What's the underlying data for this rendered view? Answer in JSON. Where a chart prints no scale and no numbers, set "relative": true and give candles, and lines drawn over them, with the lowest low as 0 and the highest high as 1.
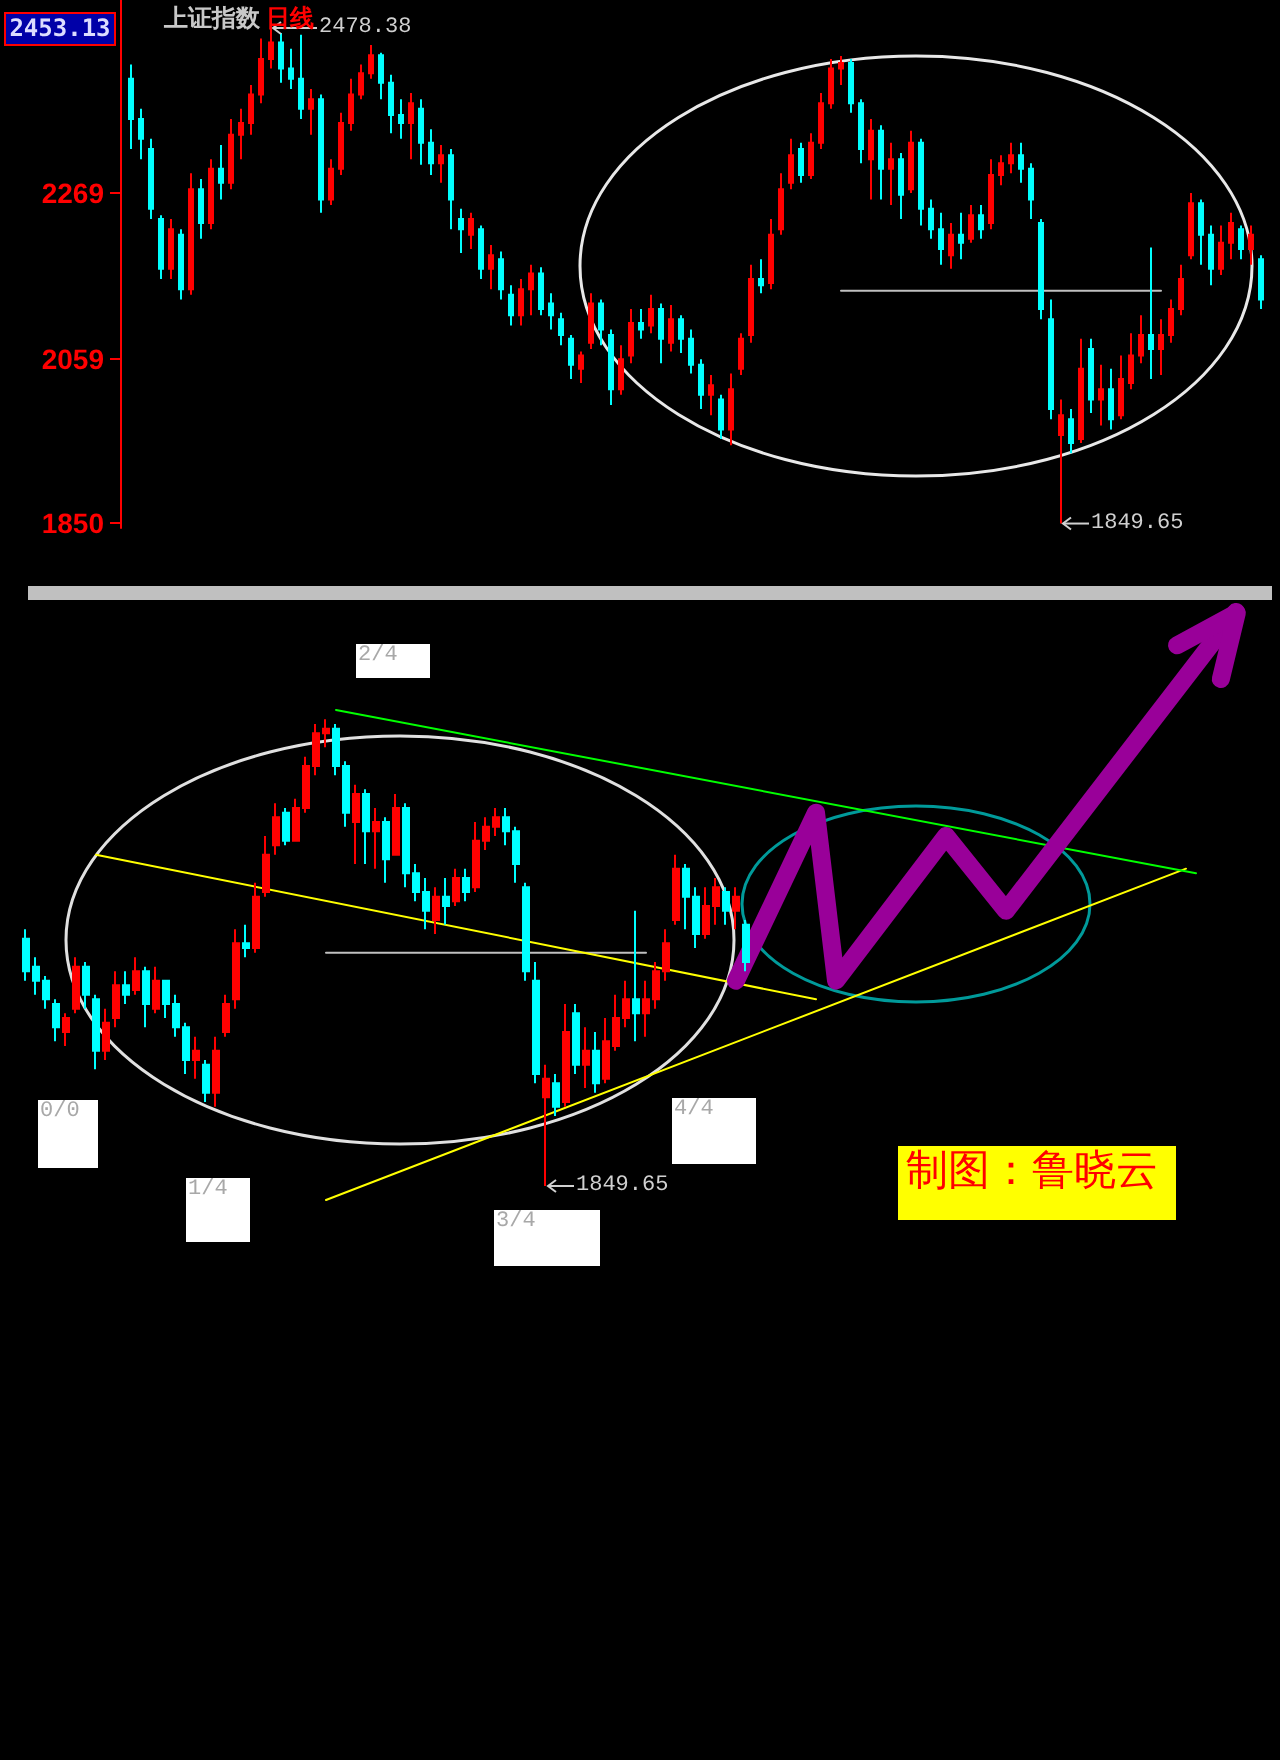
{
  "chart_data": [
    {
      "type": "candlestick",
      "title": "上证指数",
      "subtitle": "日线",
      "categories": [
        null,
        null,
        null,
        null,
        null,
        null,
        null,
        null,
        null,
        null,
        null,
        null,
        null,
        null,
        null,
        null,
        null,
        null,
        null,
        null,
        null,
        null,
        null,
        null,
        null,
        null,
        null,
        null,
        null,
        null,
        null,
        null,
        null,
        null,
        null,
        null,
        null,
        null,
        null,
        null,
        null,
        null,
        null,
        null,
        null,
        null,
        null,
        null,
        null,
        null,
        null,
        null,
        null,
        null,
        null,
        null,
        null,
        null,
        null,
        null,
        null,
        null,
        null,
        null,
        null,
        null,
        null,
        null,
        null,
        null,
        null,
        null,
        null,
        null,
        null,
        null,
        null,
        null,
        null,
        null,
        null,
        null,
        null,
        null,
        null,
        null,
        null,
        null,
        null,
        null,
        null,
        null,
        null,
        null,
        null,
        null,
        null,
        null,
        null,
        null,
        null,
        null,
        null,
        null,
        null,
        null,
        null,
        null,
        null,
        null,
        null,
        null,
        null,
        null
      ],
      "ohlc": [
        [
          2414,
          2432,
          2325,
          2363
        ],
        [
          2363,
          2376,
          2312,
          2338
        ],
        [
          2325,
          2338,
          2236,
          2249
        ],
        [
          2236,
          2241,
          2160,
          2173
        ],
        [
          2173,
          2236,
          2160,
          2223
        ],
        [
          2216,
          2223,
          2134,
          2147
        ],
        [
          2147,
          2294,
          2140,
          2274
        ],
        [
          2274,
          2287,
          2211,
          2231
        ],
        [
          2231,
          2312,
          2223,
          2300
        ],
        [
          2300,
          2330,
          2261,
          2282
        ],
        [
          2282,
          2363,
          2274,
          2343
        ],
        [
          2343,
          2376,
          2312,
          2358
        ],
        [
          2358,
          2406,
          2343,
          2394
        ],
        [
          2394,
          2465,
          2383,
          2439
        ],
        [
          2439,
          2478.38,
          2427,
          2460
        ],
        [
          2460,
          2472,
          2409,
          2427
        ],
        [
          2427,
          2452,
          2401,
          2414
        ],
        [
          2414,
          2470,
          2363,
          2376
        ],
        [
          2376,
          2401,
          2343,
          2388
        ],
        [
          2388,
          2394,
          2244,
          2261
        ],
        [
          2261,
          2312,
          2254,
          2300
        ],
        [
          2300,
          2371,
          2292,
          2358
        ],
        [
          2358,
          2414,
          2348,
          2394
        ],
        [
          2394,
          2432,
          2388,
          2421
        ],
        [
          2421,
          2457,
          2414,
          2444
        ],
        [
          2444,
          2447,
          2388,
          2409
        ],
        [
          2409,
          2419,
          2345,
          2368
        ],
        [
          2368,
          2388,
          2338,
          2358
        ],
        [
          2358,
          2396,
          2312,
          2383
        ],
        [
          2376,
          2388,
          2305,
          2333
        ],
        [
          2333,
          2350,
          2292,
          2307
        ],
        [
          2307,
          2330,
          2282,
          2317
        ],
        [
          2317,
          2325,
          2223,
          2261
        ],
        [
          2236,
          2249,
          2193,
          2223
        ],
        [
          2216,
          2244,
          2198,
          2236
        ],
        [
          2223,
          2228,
          2160,
          2173
        ],
        [
          2173,
          2203,
          2147,
          2190
        ],
        [
          2185,
          2195,
          2134,
          2147
        ],
        [
          2140,
          2152,
          2101,
          2114
        ],
        [
          2114,
          2160,
          2101,
          2147
        ],
        [
          2147,
          2178,
          2114,
          2167
        ],
        [
          2167,
          2175,
          2114,
          2122
        ],
        [
          2129,
          2142,
          2096,
          2114
        ],
        [
          2109,
          2117,
          2076,
          2089
        ],
        [
          2084,
          2089,
          2033,
          2051
        ],
        [
          2046,
          2068,
          2028,
          2063
        ],
        [
          2079,
          2142,
          2071,
          2129
        ],
        [
          2129,
          2134,
          2076,
          2096
        ],
        [
          2089,
          2096,
          2000,
          2020
        ],
        [
          2020,
          2076,
          2013,
          2058
        ],
        [
          2063,
          2122,
          2053,
          2104
        ],
        [
          2104,
          2122,
          2084,
          2096
        ],
        [
          2101,
          2140,
          2091,
          2122
        ],
        [
          2122,
          2129,
          2053,
          2084
        ],
        [
          2079,
          2127,
          2068,
          2109
        ],
        [
          2109,
          2114,
          2066,
          2084
        ],
        [
          2084,
          2096,
          2040,
          2051
        ],
        [
          2051,
          2058,
          1995,
          2013
        ],
        [
          2013,
          2038,
          1987,
          2025
        ],
        [
          2007,
          2013,
          1957,
          1969
        ],
        [
          1969,
          2040,
          1949,
          2020
        ],
        [
          2046,
          2091,
          2038,
          2084
        ],
        [
          2089,
          2178,
          2079,
          2160
        ],
        [
          2160,
          2185,
          2142,
          2152
        ],
        [
          2155,
          2236,
          2147,
          2216
        ],
        [
          2223,
          2294,
          2216,
          2274
        ],
        [
          2282,
          2338,
          2274,
          2317
        ],
        [
          2325,
          2333,
          2282,
          2292
        ],
        [
          2292,
          2345,
          2287,
          2333
        ],
        [
          2333,
          2396,
          2325,
          2383
        ],
        [
          2383,
          2439,
          2376,
          2427
        ],
        [
          2427,
          2443,
          2406,
          2434
        ],
        [
          2434,
          2439,
          2371,
          2383
        ],
        [
          2383,
          2388,
          2307,
          2325
        ],
        [
          2312,
          2363,
          2261,
          2348
        ],
        [
          2348,
          2355,
          2261,
          2300
        ],
        [
          2300,
          2333,
          2254,
          2312
        ],
        [
          2312,
          2320,
          2236,
          2267
        ],
        [
          2274,
          2348,
          2269,
          2333
        ],
        [
          2333,
          2338,
          2228,
          2249
        ],
        [
          2249,
          2261,
          2211,
          2223
        ],
        [
          2223,
          2244,
          2178,
          2198
        ],
        [
          2190,
          2231,
          2173,
          2216
        ],
        [
          2216,
          2244,
          2185,
          2206
        ],
        [
          2211,
          2254,
          2206,
          2241
        ],
        [
          2241,
          2254,
          2211,
          2223
        ],
        [
          2231,
          2312,
          2223,
          2292
        ],
        [
          2292,
          2317,
          2279,
          2307
        ],
        [
          2307,
          2333,
          2294,
          2317
        ],
        [
          2317,
          2333,
          2282,
          2300
        ],
        [
          2300,
          2307,
          2236,
          2261
        ],
        [
          2231,
          2236,
          2109,
          2122
        ],
        [
          2109,
          2134,
          1982,
          1995
        ],
        [
          1962,
          2007,
          1849.65,
          1987
        ],
        [
          1982,
          1995,
          1939,
          1952
        ],
        [
          1957,
          2084,
          1952,
          2046
        ],
        [
          2071,
          2084,
          1990,
          2007
        ],
        [
          2007,
          2051,
          1974,
          2020
        ],
        [
          2020,
          2046,
          1969,
          1982
        ],
        [
          1987,
          2063,
          1982,
          2033
        ],
        [
          2028,
          2091,
          2020,
          2063
        ],
        [
          2063,
          2114,
          2053,
          2089
        ],
        [
          2089,
          2200,
          2033,
          2071
        ],
        [
          2071,
          2109,
          2038,
          2089
        ],
        [
          2089,
          2134,
          2079,
          2122
        ],
        [
          2122,
          2178,
          2114,
          2160
        ],
        [
          2190,
          2269,
          2185,
          2256
        ],
        [
          2256,
          2261,
          2178,
          2216
        ],
        [
          2216,
          2228,
          2152,
          2173
        ],
        [
          2173,
          2228,
          2165,
          2206
        ],
        [
          2206,
          2244,
          2185,
          2231
        ],
        [
          2223,
          2228,
          2185,
          2198
        ],
        [
          2198,
          2228,
          2178,
          2216
        ],
        [
          2185,
          2190,
          2122,
          2134
        ]
      ],
      "series": [
        {
          "type": "line",
          "color": "#c0c0c0",
          "values": [
            null,
            null,
            null,
            null,
            null,
            null,
            null,
            null,
            null,
            null,
            null,
            null,
            null,
            null,
            null,
            null,
            null,
            null,
            null,
            null,
            null,
            null,
            null,
            null,
            null,
            null,
            null,
            null,
            null,
            null,
            null,
            null,
            null,
            null,
            null,
            null,
            null,
            null,
            null,
            null,
            null,
            null,
            null,
            null,
            null,
            null,
            null,
            null,
            null,
            null,
            null,
            null,
            null,
            null,
            null,
            null,
            null,
            null,
            null,
            null,
            null,
            null,
            null,
            null,
            null,
            null,
            null,
            null,
            null,
            null,
            null,
            2145,
            null,
            null,
            null,
            null,
            null,
            null,
            null,
            null,
            null,
            null,
            null,
            null,
            null,
            null,
            null,
            null,
            null,
            null,
            null,
            null,
            null,
            null,
            null,
            null,
            null,
            null,
            null,
            null,
            null,
            null,
            null,
            2145,
            null,
            null,
            null,
            null,
            null,
            null,
            null,
            null,
            null,
            null
          ]
        }
      ],
      "ylim": [
        1844,
        2514
      ],
      "yticks": [
        1850,
        2059,
        2269
      ],
      "tick_labels": "y",
      "annotations": [
        "2453.13",
        "2478.38",
        "1849.65"
      ]
    },
    {
      "type": "candlestick",
      "relative": true,
      "tick_labels": false,
      "categories": [
        null,
        null,
        null,
        null,
        null,
        null,
        null,
        null,
        null,
        null,
        null,
        null,
        null,
        null,
        null,
        null,
        null,
        null,
        null,
        null,
        null,
        null,
        null,
        null,
        null,
        null,
        null,
        null,
        null,
        null,
        null,
        null,
        null,
        null,
        null,
        null,
        null,
        null,
        null,
        null,
        null,
        null,
        null,
        null,
        null,
        null,
        null,
        null,
        null,
        null,
        null,
        null,
        null,
        null,
        null,
        null,
        null,
        null,
        null,
        null,
        null,
        null,
        null,
        null,
        null,
        null,
        null,
        null,
        null,
        null,
        null,
        null,
        null,
        null,
        null,
        null,
        null,
        null,
        null,
        null,
        null,
        null,
        null,
        null,
        null,
        null,
        null,
        null,
        null,
        null,
        null,
        null,
        null,
        null,
        null,
        null,
        null,
        null,
        null,
        null,
        null,
        null,
        null,
        null,
        null,
        null,
        null,
        null,
        null,
        null,
        null,
        null,
        null,
        null,
        null,
        null,
        null,
        null,
        null,
        null,
        null,
        null,
        null,
        null
      ],
      "ohlc": [
        [
          0.53,
          0.55,
          0.44,
          0.46
        ],
        [
          0.47,
          0.49,
          0.41,
          0.44
        ],
        [
          0.44,
          0.45,
          0.38,
          0.4
        ],
        [
          0.39,
          0.4,
          0.31,
          0.34
        ],
        [
          0.33,
          0.37,
          0.3,
          0.36
        ],
        [
          0.38,
          0.49,
          0.37,
          0.47
        ],
        [
          0.47,
          0.48,
          0.38,
          0.41
        ],
        [
          0.4,
          0.41,
          0.25,
          0.29
        ],
        [
          0.29,
          0.38,
          0.27,
          0.35
        ],
        [
          0.36,
          0.46,
          0.34,
          0.43
        ],
        [
          0.43,
          0.46,
          0.39,
          0.41
        ],
        [
          0.42,
          0.49,
          0.41,
          0.46
        ],
        [
          0.46,
          0.47,
          0.34,
          0.39
        ],
        [
          0.38,
          0.47,
          0.37,
          0.44
        ],
        [
          0.44,
          0.44,
          0.36,
          0.39
        ],
        [
          0.39,
          0.41,
          0.32,
          0.34
        ],
        [
          0.34,
          0.35,
          0.24,
          0.27
        ],
        [
          0.27,
          0.32,
          0.23,
          0.29
        ],
        [
          0.26,
          0.27,
          0.18,
          0.2
        ],
        [
          0.2,
          0.32,
          0.17,
          0.29
        ],
        [
          0.33,
          0.41,
          0.32,
          0.39
        ],
        [
          0.4,
          0.55,
          0.38,
          0.52
        ],
        [
          0.52,
          0.56,
          0.49,
          0.51
        ],
        [
          0.51,
          0.65,
          0.5,
          0.62
        ],
        [
          0.63,
          0.75,
          0.62,
          0.71
        ],
        [
          0.73,
          0.82,
          0.71,
          0.79
        ],
        [
          0.8,
          0.81,
          0.73,
          0.74
        ],
        [
          0.74,
          0.83,
          0.74,
          0.81
        ],
        [
          0.81,
          0.92,
          0.8,
          0.9
        ],
        [
          0.9,
          0.99,
          0.88,
          0.97
        ],
        [
          0.97,
          1,
          0.94,
          0.98
        ],
        [
          0.98,
          0.99,
          0.88,
          0.9
        ],
        [
          0.9,
          0.91,
          0.77,
          0.8
        ],
        [
          0.78,
          0.86,
          0.69,
          0.84
        ],
        [
          0.84,
          0.85,
          0.69,
          0.76
        ],
        [
          0.76,
          0.81,
          0.68,
          0.78
        ],
        [
          0.78,
          0.79,
          0.65,
          0.7
        ],
        [
          0.71,
          0.84,
          0.71,
          0.81
        ],
        [
          0.81,
          0.82,
          0.64,
          0.67
        ],
        [
          0.67,
          0.69,
          0.61,
          0.63
        ],
        [
          0.63,
          0.66,
          0.55,
          0.59
        ],
        [
          0.57,
          0.64,
          0.54,
          0.62
        ],
        [
          0.62,
          0.66,
          0.56,
          0.6
        ],
        [
          0.61,
          0.68,
          0.6,
          0.66
        ],
        [
          0.66,
          0.68,
          0.61,
          0.63
        ],
        [
          0.64,
          0.78,
          0.63,
          0.74
        ],
        [
          0.74,
          0.79,
          0.72,
          0.77
        ],
        [
          0.77,
          0.81,
          0.75,
          0.79
        ],
        [
          0.79,
          0.81,
          0.73,
          0.76
        ],
        [
          0.76,
          0.77,
          0.65,
          0.69
        ],
        [
          0.64,
          0.65,
          0.44,
          0.46
        ],
        [
          0.44,
          0.48,
          0.22,
          0.24
        ],
        [
          0.19,
          0.26,
          0,
          0.23
        ],
        [
          0.22,
          0.24,
          0.15,
          0.17
        ],
        [
          0.18,
          0.39,
          0.17,
          0.33
        ],
        [
          0.37,
          0.39,
          0.24,
          0.26
        ],
        [
          0.26,
          0.34,
          0.21,
          0.29
        ],
        [
          0.29,
          0.33,
          0.2,
          0.22
        ],
        [
          0.23,
          0.36,
          0.22,
          0.31
        ],
        [
          0.3,
          0.41,
          0.29,
          0.36
        ],
        [
          0.36,
          0.44,
          0.34,
          0.4
        ],
        [
          0.4,
          0.59,
          0.31,
          0.37
        ],
        [
          0.37,
          0.44,
          0.32,
          0.4
        ],
        [
          0.4,
          0.48,
          0.38,
          0.46
        ],
        [
          0.46,
          0.55,
          0.44,
          0.52
        ],
        [
          0.57,
          0.71,
          0.56,
          0.68
        ],
        [
          0.68,
          0.69,
          0.55,
          0.62
        ],
        [
          0.62,
          0.64,
          0.51,
          0.54
        ],
        [
          0.54,
          0.64,
          0.53,
          0.6
        ],
        [
          0.6,
          0.66,
          0.56,
          0.64
        ],
        [
          0.63,
          0.64,
          0.56,
          0.59
        ],
        [
          0.59,
          0.64,
          0.55,
          0.62
        ],
        [
          0.56,
          0.57,
          0.46,
          0.48
        ],
        null,
        null,
        null,
        null,
        null,
        null,
        null,
        null,
        null,
        null,
        null,
        null,
        null,
        null,
        null,
        null,
        null,
        null,
        null,
        null,
        null,
        null,
        null,
        null,
        null,
        null,
        null,
        null,
        null,
        null,
        null,
        null,
        null,
        null,
        null,
        null,
        null,
        null,
        null,
        null,
        null,
        null,
        null,
        null,
        null,
        null,
        null,
        null,
        null,
        null,
        null
      ],
      "series": [
        {
          "type": "line",
          "color": "#c0c0c0",
          "values": [
            null,
            null,
            null,
            null,
            null,
            null,
            null,
            null,
            null,
            null,
            null,
            null,
            null,
            null,
            null,
            null,
            null,
            null,
            null,
            null,
            null,
            null,
            null,
            null,
            null,
            null,
            null,
            null,
            null,
            null,
            0.5,
            null,
            null,
            null,
            null,
            null,
            null,
            null,
            null,
            null,
            null,
            null,
            null,
            null,
            null,
            null,
            null,
            null,
            null,
            null,
            null,
            null,
            null,
            null,
            null,
            null,
            null,
            null,
            null,
            null,
            null,
            null,
            0.5,
            null,
            null,
            null,
            null,
            null,
            null,
            null,
            null,
            null,
            null,
            null,
            null,
            null,
            null,
            null,
            null,
            null,
            null,
            null,
            null,
            null,
            null,
            null,
            null,
            null,
            null,
            null,
            null,
            null,
            null,
            null,
            null,
            null,
            null,
            null,
            null,
            null,
            null,
            null,
            null,
            null,
            null,
            null,
            null,
            null,
            null,
            null,
            null,
            null,
            null,
            null,
            null,
            null,
            null,
            null,
            null,
            null,
            null,
            null,
            null,
            null
          ]
        },
        {
          "type": "line",
          "color": "#ffff00",
          "values": [
            null,
            null,
            null,
            null,
            null,
            null,
            null,
            0.71,
            null,
            null,
            null,
            null,
            null,
            null,
            null,
            null,
            null,
            null,
            null,
            null,
            null,
            null,
            null,
            null,
            null,
            null,
            null,
            null,
            null,
            null,
            null,
            null,
            null,
            null,
            null,
            null,
            null,
            null,
            null,
            null,
            null,
            null,
            null,
            null,
            null,
            null,
            null,
            null,
            null,
            null,
            null,
            null,
            null,
            null,
            null,
            null,
            null,
            null,
            null,
            null,
            null,
            null,
            null,
            null,
            null,
            null,
            null,
            null,
            null,
            null,
            null,
            null,
            null,
            null,
            null,
            null,
            null,
            null,
            null,
            0.4,
            null,
            null,
            null,
            null,
            null,
            null,
            null,
            null,
            null,
            null,
            null,
            null,
            null,
            null,
            null,
            null,
            null,
            null,
            null,
            null,
            null,
            null,
            null,
            null,
            null,
            null,
            null,
            null,
            null,
            null,
            null,
            null,
            null,
            null,
            null,
            null,
            null,
            null,
            null,
            null,
            null,
            null,
            null,
            null
          ]
        },
        {
          "type": "line",
          "color": "#ffff00",
          "values": [
            null,
            null,
            null,
            null,
            null,
            null,
            null,
            null,
            null,
            null,
            null,
            null,
            null,
            null,
            null,
            null,
            null,
            null,
            null,
            null,
            null,
            null,
            null,
            null,
            null,
            null,
            null,
            null,
            null,
            null,
            -0.03,
            null,
            null,
            null,
            null,
            null,
            null,
            null,
            null,
            null,
            null,
            null,
            null,
            null,
            null,
            null,
            null,
            null,
            null,
            null,
            null,
            null,
            null,
            null,
            null,
            null,
            null,
            null,
            null,
            null,
            null,
            null,
            null,
            null,
            null,
            null,
            null,
            null,
            null,
            null,
            null,
            null,
            null,
            null,
            null,
            null,
            null,
            null,
            null,
            null,
            null,
            null,
            null,
            null,
            null,
            null,
            null,
            null,
            null,
            null,
            null,
            null,
            null,
            null,
            null,
            null,
            null,
            null,
            null,
            null,
            null,
            null,
            null,
            null,
            null,
            null,
            null,
            null,
            null,
            null,
            null,
            null,
            null,
            null,
            null,
            null,
            0.68,
            null,
            null,
            null,
            null,
            null,
            null,
            null
          ]
        },
        {
          "type": "line",
          "color": "#00ff00",
          "values": [
            null,
            null,
            null,
            null,
            null,
            null,
            null,
            null,
            null,
            null,
            null,
            null,
            null,
            null,
            null,
            null,
            null,
            null,
            null,
            null,
            null,
            null,
            null,
            null,
            null,
            null,
            null,
            null,
            null,
            null,
            null,
            1.02,
            null,
            null,
            null,
            null,
            null,
            null,
            null,
            null,
            null,
            null,
            null,
            null,
            null,
            null,
            null,
            null,
            null,
            null,
            null,
            null,
            null,
            null,
            null,
            null,
            null,
            null,
            null,
            null,
            null,
            null,
            null,
            null,
            null,
            null,
            null,
            null,
            null,
            null,
            null,
            null,
            null,
            null,
            null,
            null,
            null,
            null,
            null,
            null,
            null,
            null,
            null,
            null,
            null,
            null,
            null,
            null,
            null,
            null,
            null,
            null,
            null,
            null,
            null,
            null,
            null,
            null,
            null,
            null,
            null,
            null,
            null,
            null,
            null,
            null,
            null,
            null,
            null,
            null,
            null,
            null,
            null,
            null,
            null,
            null,
            null,
            0.67,
            null,
            null,
            null,
            null,
            null,
            null
          ]
        },
        {
          "type": "line",
          "color": "#990099",
          "values": [
            null,
            null,
            null,
            null,
            null,
            null,
            null,
            null,
            null,
            null,
            null,
            null,
            null,
            null,
            null,
            null,
            null,
            null,
            null,
            null,
            null,
            null,
            null,
            null,
            null,
            null,
            null,
            null,
            null,
            null,
            null,
            null,
            null,
            null,
            null,
            null,
            null,
            null,
            null,
            null,
            null,
            null,
            null,
            null,
            null,
            null,
            null,
            null,
            null,
            null,
            null,
            null,
            null,
            null,
            null,
            null,
            null,
            null,
            null,
            null,
            null,
            null,
            null,
            null,
            null,
            null,
            null,
            null,
            null,
            null,
            null,
            0.44,
            null,
            null,
            null,
            null,
            null,
            null,
            null,
            0.8,
            null,
            0.44,
            null,
            null,
            null,
            null,
            null,
            null,
            null,
            null,
            null,
            null,
            0.75,
            null,
            null,
            null,
            null,
            null,
            0.59,
            null,
            null,
            null,
            null,
            null,
            null,
            null,
            null,
            null,
            null,
            null,
            null,
            null,
            null,
            null,
            null,
            null,
            null,
            null,
            null,
            null,
            null,
            1.23,
            null,
            null
          ]
        }
      ],
      "annotations": [
        "0/0",
        "1/4",
        "2/4",
        "3/4",
        "4/4",
        "制图：鲁晓云",
        "1849.65"
      ]
    }
  ]
}
